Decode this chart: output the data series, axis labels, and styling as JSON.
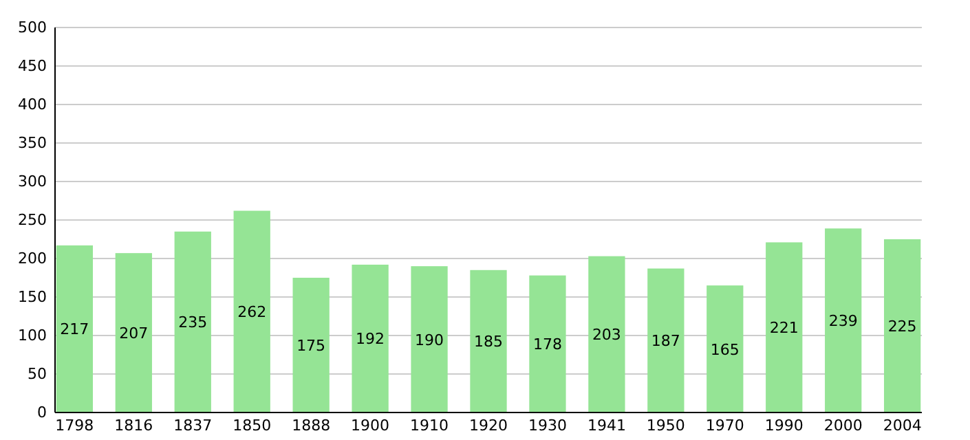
{
  "chart_data": {
    "type": "bar",
    "categories": [
      "1798",
      "1816",
      "1837",
      "1850",
      "1888",
      "1900",
      "1910",
      "1920",
      "1930",
      "1941",
      "1950",
      "1970",
      "1990",
      "2000",
      "2004"
    ],
    "values": [
      217,
      207,
      235,
      262,
      175,
      192,
      190,
      185,
      178,
      203,
      187,
      165,
      221,
      239,
      225
    ],
    "color": "#95e495",
    "ylim": [
      0,
      500
    ],
    "yticks": [
      0,
      50,
      100,
      150,
      200,
      250,
      300,
      350,
      400,
      450,
      500
    ],
    "grid": "y",
    "data_labels": true
  }
}
